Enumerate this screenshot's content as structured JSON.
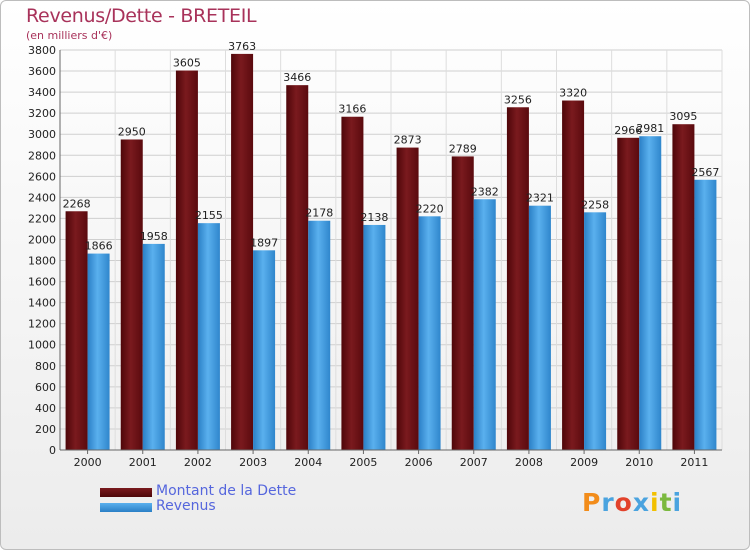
{
  "title": "Revenus/Dette - BRETEIL",
  "subtitle": "(en milliers d'€)",
  "colors": {
    "debt": "#6b0a0f",
    "revenue": "#3a98dd",
    "title": "#a8325a",
    "legend_text": "#5566dd"
  },
  "chart_data": {
    "type": "bar",
    "title": "Revenus/Dette - BRETEIL",
    "subtitle": "(en milliers d'€)",
    "categories": [
      "2000",
      "2001",
      "2002",
      "2003",
      "2004",
      "2005",
      "2006",
      "2007",
      "2008",
      "2009",
      "2010",
      "2011"
    ],
    "series": [
      {
        "name": "Montant de la Dette",
        "values": [
          2268,
          2950,
          3605,
          3763,
          3466,
          3166,
          2873,
          2789,
          3256,
          3320,
          2966,
          3095
        ]
      },
      {
        "name": "Revenus",
        "values": [
          1866,
          1958,
          2155,
          1897,
          2178,
          2138,
          2220,
          2382,
          2321,
          2258,
          2981,
          2567
        ]
      }
    ],
    "ylim": [
      0,
      3800
    ],
    "yticks": [
      0,
      200,
      400,
      600,
      800,
      1000,
      1200,
      1400,
      1600,
      1800,
      2000,
      2200,
      2400,
      2600,
      2800,
      3000,
      3200,
      3400,
      3600,
      3800
    ],
    "grid": true,
    "legend": "bottom-left"
  },
  "legend": {
    "debt_label": "Montant de la Dette",
    "revenue_label": "Revenus"
  },
  "logo": {
    "letters": [
      "P",
      "r",
      "o",
      "x",
      "i",
      "t",
      "i"
    ],
    "colors": [
      "#f28c1a",
      "#4aa3df",
      "#e2422b",
      "#4aa3df",
      "#f2c000",
      "#7bb93f",
      "#4aa3df"
    ]
  }
}
